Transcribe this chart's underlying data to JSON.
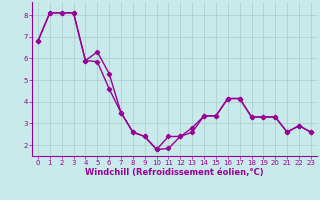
{
  "xlabel": "Windchill (Refroidissement éolien,°C)",
  "background_color": "#c8eaea",
  "grid_color": "#a8cccc",
  "line_color": "#990099",
  "series1_x": [
    0,
    1,
    2,
    3,
    4,
    5,
    6,
    7,
    8,
    9,
    10,
    11,
    12,
    13,
    14,
    15,
    16,
    17,
    18,
    19,
    20,
    21,
    22,
    23
  ],
  "series1_y": [
    6.8,
    8.1,
    8.1,
    8.1,
    5.9,
    6.3,
    5.3,
    3.5,
    2.6,
    2.4,
    1.8,
    1.85,
    2.4,
    2.8,
    3.35,
    3.35,
    4.15,
    4.15,
    3.3,
    3.3,
    3.3,
    2.6,
    2.9,
    2.6
  ],
  "series2_x": [
    0,
    1,
    2,
    3,
    4,
    5,
    6,
    7,
    8,
    9,
    10,
    11,
    12,
    13,
    14,
    15,
    16,
    17,
    18,
    19,
    20,
    21,
    22,
    23
  ],
  "series2_y": [
    6.8,
    8.1,
    8.1,
    8.1,
    5.9,
    5.85,
    4.6,
    3.5,
    2.6,
    2.4,
    1.8,
    2.4,
    2.4,
    2.6,
    3.35,
    3.35,
    4.15,
    4.15,
    3.3,
    3.3,
    3.3,
    2.6,
    2.9,
    2.6
  ],
  "xlim_min": -0.5,
  "xlim_max": 23.5,
  "ylim_min": 1.5,
  "ylim_max": 8.6,
  "yticks": [
    2,
    3,
    4,
    5,
    6,
    7,
    8
  ],
  "xticks": [
    0,
    1,
    2,
    3,
    4,
    5,
    6,
    7,
    8,
    9,
    10,
    11,
    12,
    13,
    14,
    15,
    16,
    17,
    18,
    19,
    20,
    21,
    22,
    23
  ],
  "marker": "D",
  "marker_size": 2.2,
  "line_width": 1.0,
  "tick_label_fontsize": 5.0,
  "xlabel_fontsize": 6.0,
  "line_color2": "#990099"
}
